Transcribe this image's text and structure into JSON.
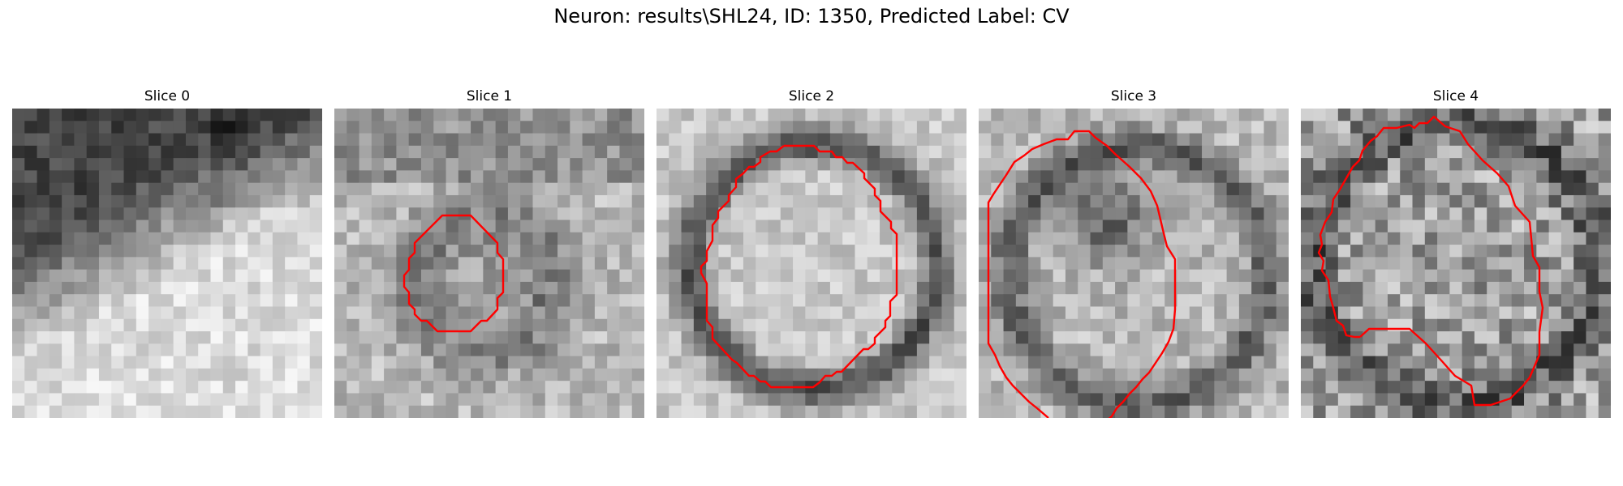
{
  "figure": {
    "title": "Neuron: results\\SHL24, ID: 1350, Predicted Label: CV"
  },
  "slices": [
    {
      "title": "Slice 0",
      "contour": false
    },
    {
      "title": "Slice 1",
      "contour": true
    },
    {
      "title": "Slice 2",
      "contour": true
    },
    {
      "title": "Slice 3",
      "contour": true
    },
    {
      "title": "Slice 4",
      "contour": true
    }
  ],
  "colors": {
    "contour": "#ff0000",
    "background": "#ffffff"
  }
}
